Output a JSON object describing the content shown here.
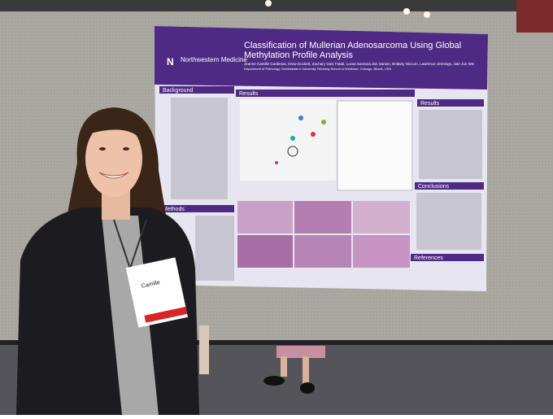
{
  "poster": {
    "logo": "Northwestern Medicine",
    "title": "Classification of Mullerian Adenosarcoma Using Global Methylation Profile Analysis",
    "authors": "Jeanne Camille Cardenas, Drew Duckett, Zachary Gatz Fattal, Lucas Santana dos Santos, Brittany Niccum, Lawrence Jennings, Jian-Jun Wei",
    "affiliation": "Department of Pathology, Northwestern University Feinberg School of Medicine, Chicago, Illinois, USA",
    "sections": {
      "background": "Background",
      "methods": "Methods",
      "results": "Results",
      "results_right": "Results",
      "conclusions": "Conclusions",
      "references": "References"
    }
  },
  "badge": {
    "name": "Camille"
  }
}
